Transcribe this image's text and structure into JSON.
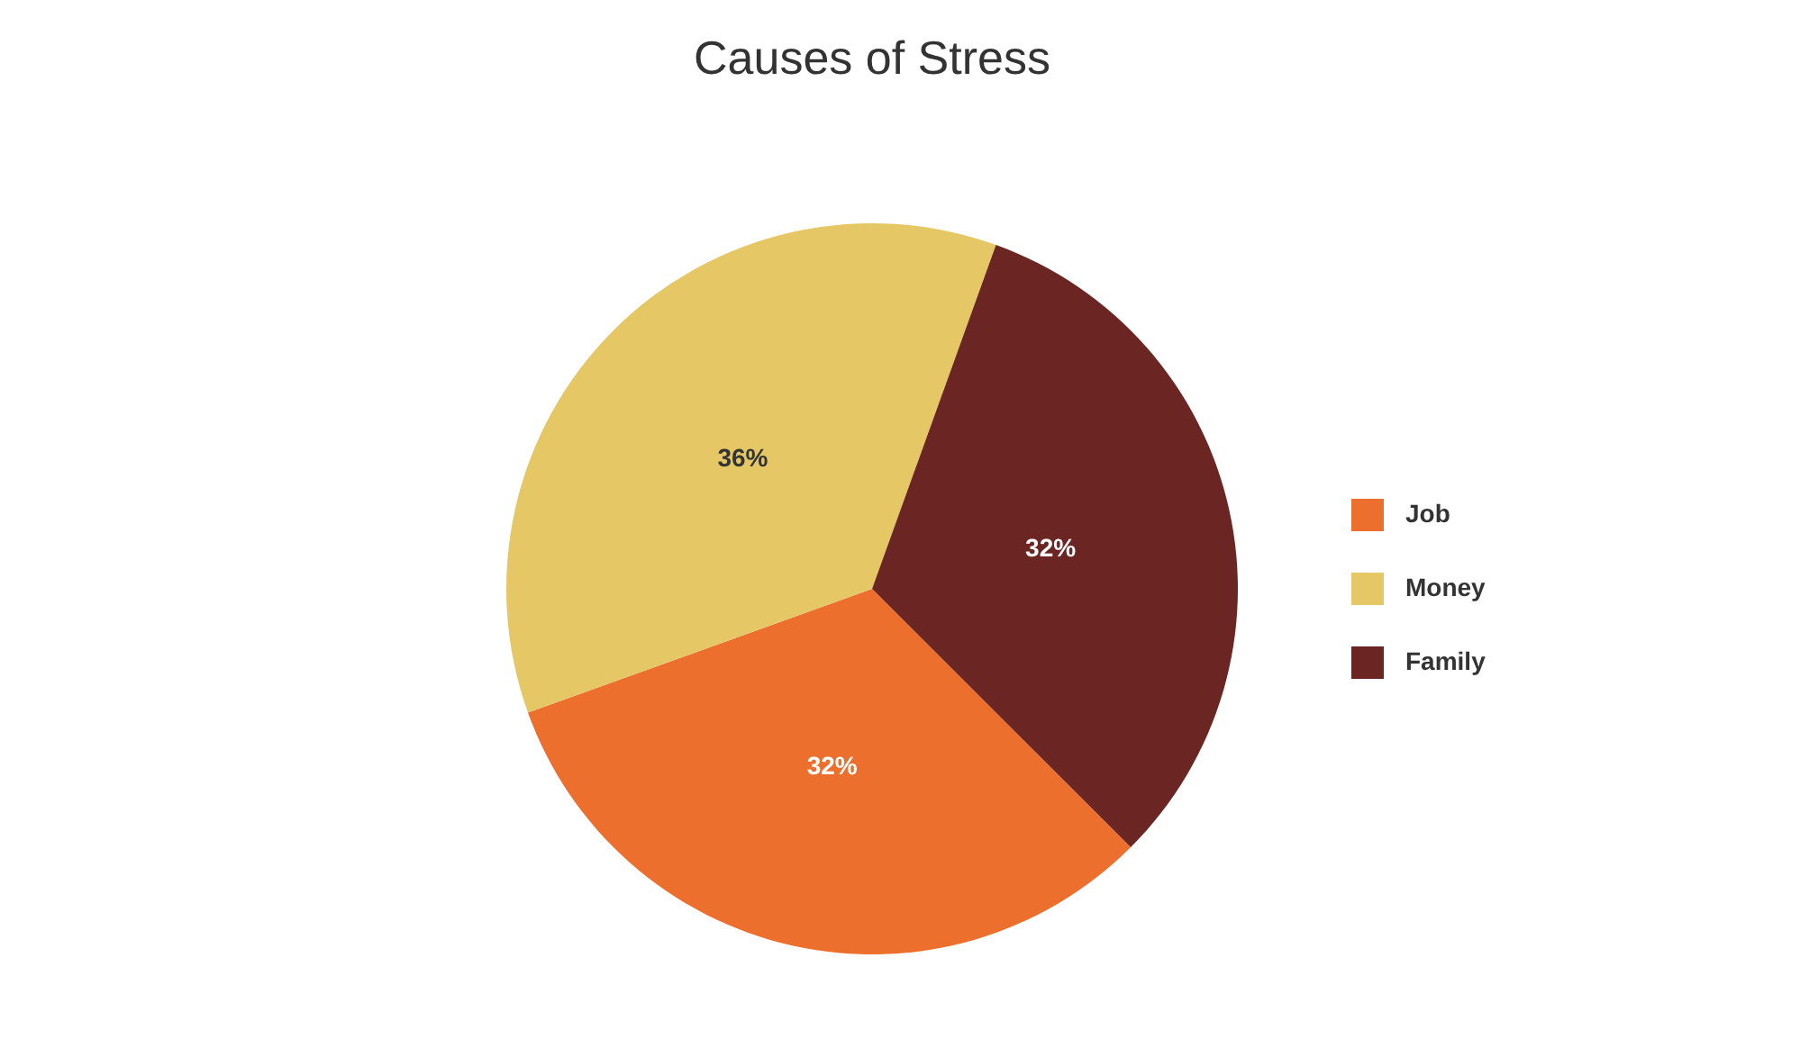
{
  "chart_data": {
    "type": "pie",
    "title": "Causes of Stress",
    "categories": [
      "Job",
      "Money",
      "Family"
    ],
    "values": [
      32,
      36,
      32
    ],
    "colors": [
      "#ec6f2d",
      "#e5c865",
      "#6b2522"
    ],
    "value_labels": [
      "32%",
      "36%",
      "32%"
    ],
    "legend": "right"
  }
}
